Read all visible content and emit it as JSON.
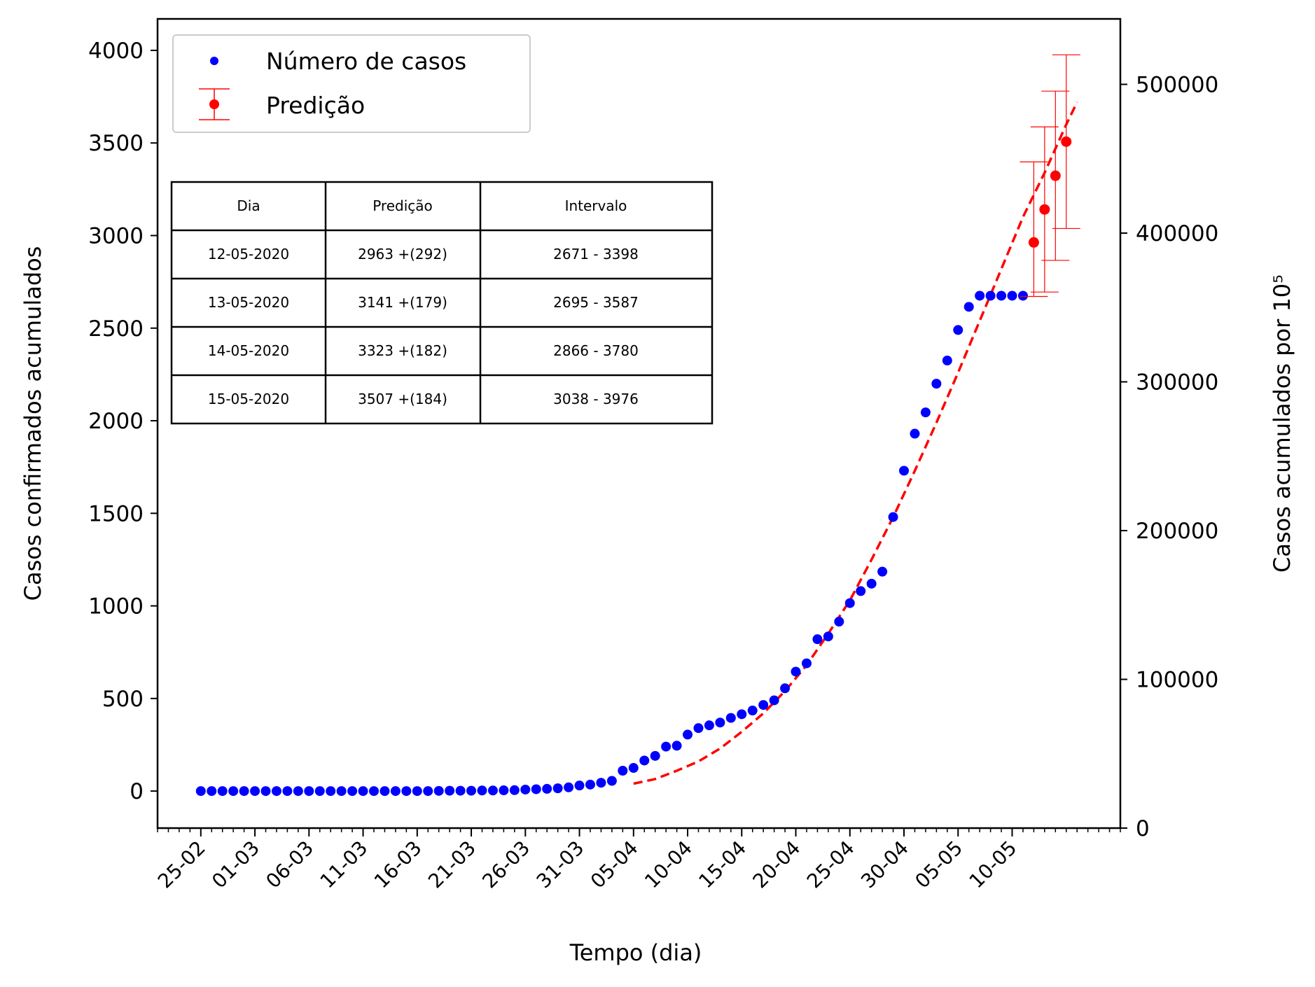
{
  "chart_data": {
    "type": "scatter",
    "xlabel": "Tempo (dia)",
    "ylabel": "Casos confirmados acumulados",
    "ylabel_right": "Casos acumulados por 10⁵",
    "ylim": [
      -200,
      4170
    ],
    "ylim_right": [
      0,
      544000
    ],
    "xlim": [
      -4,
      85
    ],
    "yticks": [
      0,
      500,
      1000,
      1500,
      2000,
      2500,
      3000,
      3500,
      4000
    ],
    "yticks_right": [
      0,
      100000,
      200000,
      300000,
      400000,
      500000
    ],
    "x_tick_labels": [
      "25-02",
      "01-03",
      "06-03",
      "11-03",
      "16-03",
      "21-03",
      "26-03",
      "31-03",
      "05-04",
      "10-04",
      "15-04",
      "20-04",
      "25-04",
      "30-04",
      "05-05",
      "10-05"
    ],
    "legend_position": "top-left",
    "legend": [
      {
        "label": "Número de casos",
        "color": "#0000ff",
        "marker": "dot"
      },
      {
        "label": "Predição",
        "color": "#ff0000",
        "marker": "errorbar"
      }
    ],
    "series": [
      {
        "name": "Número de casos",
        "color": "#0000ff",
        "x": [
          0,
          1,
          2,
          3,
          4,
          5,
          6,
          7,
          8,
          9,
          10,
          11,
          12,
          13,
          14,
          15,
          16,
          17,
          18,
          19,
          20,
          21,
          22,
          23,
          24,
          25,
          26,
          27,
          28,
          29,
          30,
          31,
          32,
          33,
          34,
          35,
          36,
          37,
          38,
          39,
          40,
          41,
          42,
          43,
          44,
          45,
          46,
          47,
          48,
          49,
          50,
          51,
          52,
          53,
          54,
          55,
          56,
          57,
          58,
          59,
          60,
          61,
          62,
          63,
          64,
          65,
          66,
          67,
          68,
          69,
          70,
          71,
          72,
          73,
          74,
          75,
          76
        ],
        "y": [
          0,
          0,
          0,
          0,
          0,
          0,
          0,
          0,
          0,
          0,
          0,
          0,
          0,
          0,
          0,
          0,
          0,
          0,
          0,
          0,
          0,
          0,
          1,
          2,
          2,
          2,
          3,
          3,
          4,
          5,
          8,
          10,
          12,
          15,
          20,
          30,
          35,
          45,
          55,
          110,
          125,
          165,
          190,
          240,
          245,
          305,
          340,
          355,
          370,
          395,
          415,
          435,
          465,
          490,
          555,
          645,
          690,
          820,
          835,
          915,
          1015,
          1080,
          1120,
          1185,
          1480,
          1730,
          1930,
          2045,
          2200,
          2325,
          2490,
          2615,
          2675,
          2675,
          2675,
          2675,
          2675
        ]
      },
      {
        "name": "Predição",
        "color": "#ff0000",
        "x": [
          77,
          78,
          79,
          80
        ],
        "y": [
          2963,
          3141,
          3323,
          3507
        ],
        "err_low": [
          2671,
          2695,
          2866,
          3038
        ],
        "err_high": [
          3398,
          3587,
          3780,
          3976
        ]
      }
    ],
    "fit_curve": {
      "style": "dashed",
      "color": "#ff0000",
      "x": [
        40,
        42,
        44,
        46,
        48,
        50,
        52,
        54,
        56,
        58,
        60,
        62,
        64,
        66,
        68,
        70,
        72,
        74,
        76,
        78,
        80,
        81
      ],
      "y": [
        40,
        65,
        110,
        160,
        230,
        320,
        420,
        540,
        680,
        850,
        1030,
        1250,
        1480,
        1730,
        1990,
        2260,
        2540,
        2820,
        3100,
        3340,
        3600,
        3720
      ]
    }
  },
  "table": {
    "headers": [
      "Dia",
      "Predição",
      "Intervalo"
    ],
    "rows": [
      [
        "12-05-2020",
        "2963 +(292)",
        "2671 - 3398"
      ],
      [
        "13-05-2020",
        "3141 +(179)",
        "2695 - 3587"
      ],
      [
        "14-05-2020",
        "3323 +(182)",
        "2866 - 3780"
      ],
      [
        "15-05-2020",
        "3507 +(184)",
        "3038 - 3976"
      ]
    ]
  }
}
